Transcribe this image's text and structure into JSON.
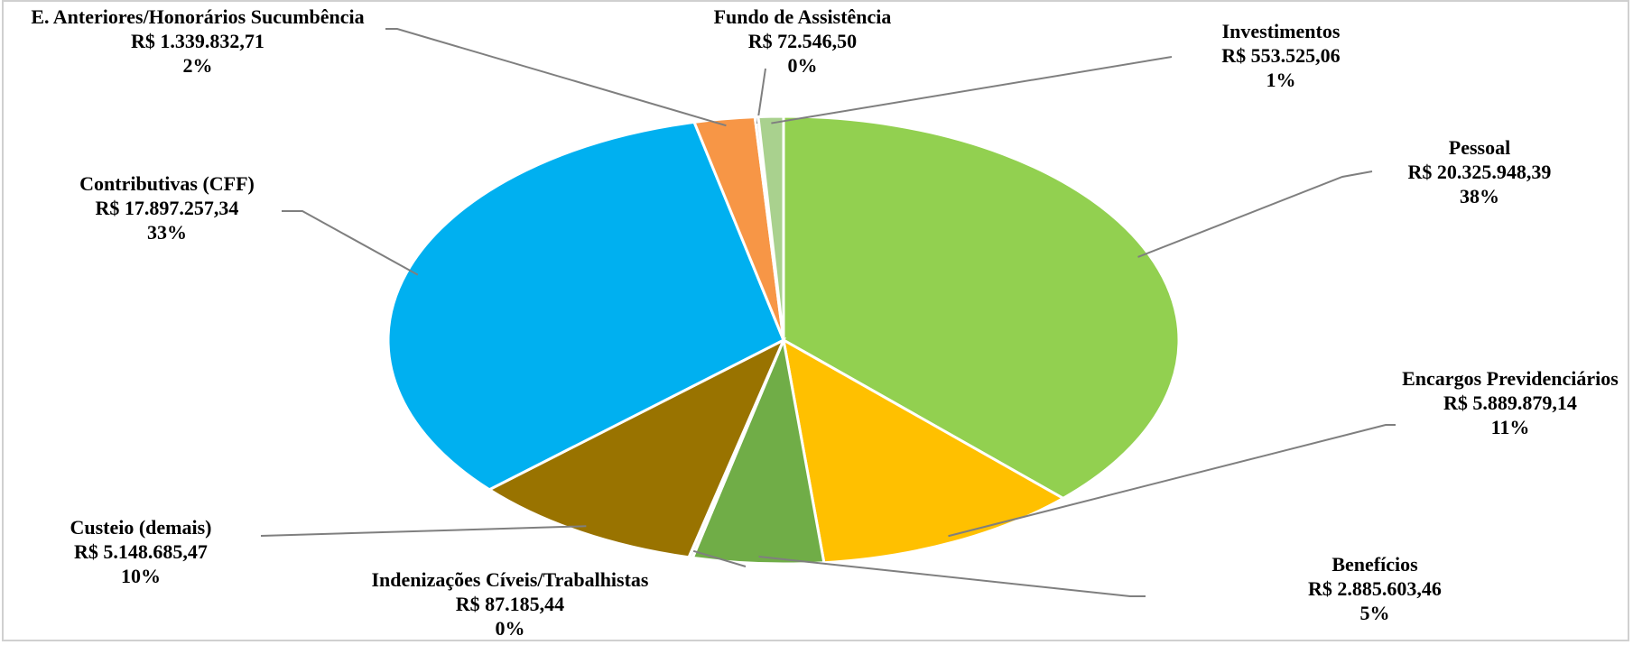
{
  "chart_data": {
    "type": "pie",
    "categories": [
      "Pessoal",
      "Encargos Previdenciários",
      "Benefícios",
      "Indenizações Cíveis/Trabalhistas",
      "Custeio (demais)",
      "Contributivas (CFF)",
      "E. Anteriores/Honorários Sucumbência",
      "Fundo de Assistência",
      "Investimentos"
    ],
    "values": [
      20325948.39,
      5889879.14,
      2885603.46,
      87185.44,
      5148685.47,
      17897257.34,
      1339832.71,
      72546.5,
      553525.06
    ],
    "value_labels": [
      "R$ 20.325.948,39",
      "R$ 5.889.879,14",
      "R$ 2.885.603,46",
      "R$ 87.185,44",
      "R$ 5.148.685,47",
      "R$ 17.897.257,34",
      "R$ 1.339.832,71",
      "R$ 72.546,50",
      "R$ 553.525,06"
    ],
    "percent_labels": [
      "38%",
      "11%",
      "5%",
      "0%",
      "10%",
      "33%",
      "2%",
      "0%",
      "1%"
    ],
    "colors": [
      "#92d050",
      "#ffc000",
      "#70ad47",
      "#f2f2f2",
      "#997300",
      "#00b0f0",
      "#f79646",
      "#d9d9d9",
      "#a9d18e"
    ]
  }
}
